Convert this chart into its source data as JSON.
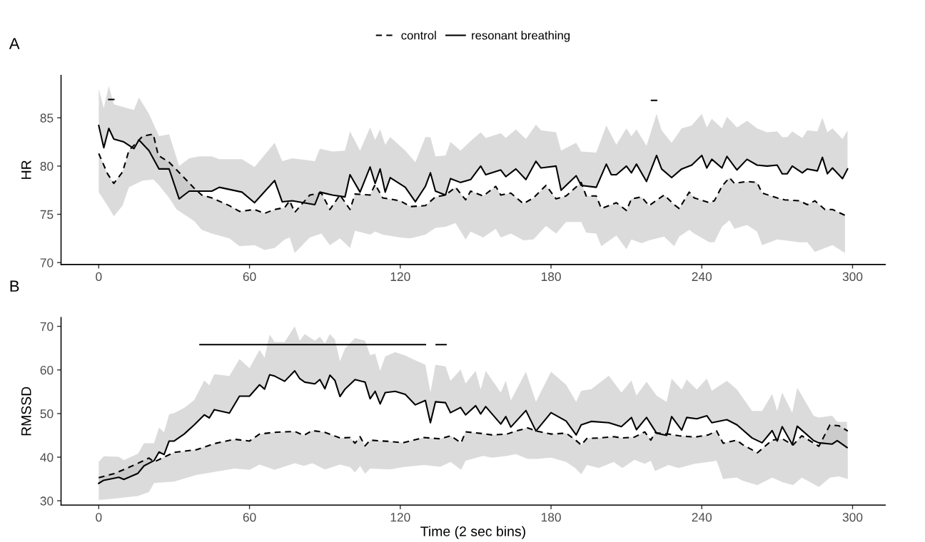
{
  "chart_data": [
    {
      "type": "line",
      "ylabel": "HR",
      "annotations": [
        "A"
      ],
      "legend": "top",
      "grid": false,
      "xlim": [
        -15,
        313
      ],
      "xticks": [
        0,
        60,
        120,
        180,
        240,
        300
      ],
      "ylim": [
        69.8,
        89.4
      ],
      "yticks": [
        70,
        75,
        80,
        85
      ],
      "series": [
        {
          "name": "control",
          "color": "#000000",
          "line_style": "dashed",
          "x": [
            0,
            3.5,
            6,
            9.5,
            12,
            17.5,
            21.7,
            23.7,
            28,
            31,
            38,
            41,
            45,
            52,
            56,
            62,
            66,
            70,
            74,
            76,
            78,
            84,
            88.6,
            92,
            96,
            100,
            102,
            108,
            110,
            113,
            120,
            124,
            130,
            134,
            138,
            142,
            146,
            148,
            153,
            158,
            160,
            164,
            169,
            173,
            178,
            182,
            186,
            192,
            194,
            198,
            200,
            206,
            210,
            212,
            216,
            219,
            225,
            229,
            231,
            235,
            237,
            243,
            245,
            248,
            251,
            253,
            258,
            262,
            264,
            270,
            273,
            279,
            282,
            285,
            289,
            292,
            297
          ],
          "values": [
            81.3,
            79.2,
            78.2,
            79.4,
            81.6,
            83.1,
            83.3,
            81.1,
            80.4,
            79.6,
            77.7,
            77,
            76.7,
            75.9,
            75.3,
            75.5,
            75.1,
            75.5,
            75.7,
            76.4,
            75.2,
            77,
            77.2,
            75.5,
            77,
            75.5,
            77.1,
            77,
            78.1,
            76.7,
            76.4,
            75.8,
            75.9,
            76.8,
            77,
            77.8,
            76.5,
            77.4,
            76.9,
            77.9,
            77,
            77.2,
            76.1,
            76.7,
            78,
            76.6,
            76.9,
            78.3,
            76.9,
            76.9,
            75.6,
            76.2,
            75.4,
            76.6,
            76.8,
            75.9,
            77,
            76,
            75.6,
            77.3,
            76.7,
            76.2,
            76.4,
            77.9,
            78.8,
            78.2,
            78.4,
            78.3,
            77.2,
            76.7,
            76.5,
            76.4,
            76,
            76.4,
            75.5,
            75.5,
            74.9
          ],
          "lower": [
            77.3,
            75.9,
            74.8,
            75.9,
            77.8,
            78.5,
            78.6,
            78.1,
            76.7,
            75.5,
            74.3,
            73.4,
            73,
            72.5,
            71.7,
            71.8,
            71.3,
            71.5,
            72.4,
            72.6,
            71,
            72.6,
            73,
            71.8,
            72.5,
            71.5,
            73.3,
            72.9,
            73.2,
            72.9,
            72.6,
            72.5,
            72.9,
            73.6,
            73.7,
            74.1,
            72.4,
            73.2,
            72.6,
            73.5,
            72.6,
            73,
            72.3,
            72.4,
            73.8,
            73,
            74.2,
            74.2,
            73.1,
            73,
            71.7,
            72.8,
            71.4,
            72.4,
            72,
            72.3,
            72.7,
            71.7,
            72.7,
            73.4,
            73,
            72.1,
            72.1,
            73.7,
            74.4,
            73.5,
            73.9,
            73.2,
            71.8,
            72.4,
            72.3,
            72.1,
            72.1,
            71.1,
            71.5,
            71.8,
            71
          ],
          "upper": [
            81.3,
            79.2,
            78.2,
            79.4,
            81.6,
            83.1,
            83.3,
            81.1,
            80.4,
            79.6,
            77.7,
            77,
            76.7,
            75.9,
            75.3,
            75.5,
            75.1,
            75.5,
            75.7,
            76.4,
            75.2,
            77,
            77.2,
            75.5,
            77,
            75.5,
            77.1,
            77,
            78.1,
            76.7,
            76.4,
            75.8,
            75.9,
            76.8,
            77,
            77.8,
            76.5,
            77.4,
            76.9,
            77.9,
            77,
            77.2,
            76.1,
            76.7,
            78,
            76.6,
            76.9,
            78.3,
            76.9,
            76.9,
            75.6,
            76.2,
            75.4,
            76.6,
            76.8,
            75.9,
            77,
            76,
            75.6,
            77.3,
            76.7,
            76.2,
            76.4,
            77.9,
            78.8,
            78.2,
            78.4,
            78.3,
            77.2,
            76.7,
            76.5,
            76.4,
            76,
            76.4,
            75.5,
            75.5,
            74.9
          ]
        },
        {
          "name": "resonant breathing",
          "color": "#000000",
          "line_style": "solid",
          "x": [
            0,
            2,
            4,
            6,
            10,
            14,
            16,
            20,
            24,
            28,
            32,
            36,
            40,
            45,
            48,
            57,
            62,
            70,
            73,
            77,
            86,
            88,
            93,
            98,
            100,
            104,
            108,
            110,
            112,
            114,
            116,
            122,
            126,
            130,
            132,
            134,
            138,
            140,
            144,
            148,
            152,
            154,
            160,
            162,
            166,
            170,
            174,
            176,
            182,
            184,
            190,
            192,
            198,
            202,
            204,
            206,
            210,
            212,
            214,
            218,
            222,
            224,
            228,
            232,
            236,
            240,
            242,
            244,
            248,
            250,
            254,
            258,
            262,
            266,
            270,
            272,
            274,
            276,
            280,
            282,
            286,
            288,
            290,
            292,
            296,
            298
          ],
          "values": [
            84.2,
            81.9,
            83.9,
            82.8,
            82.5,
            81.8,
            82.7,
            81.6,
            79.7,
            79.7,
            76.6,
            77.4,
            77.4,
            77.4,
            77.8,
            77.3,
            76.2,
            78.5,
            76.3,
            76.4,
            76,
            77.3,
            77,
            76.8,
            79.1,
            77.3,
            79.9,
            78.2,
            79.7,
            77.3,
            78.8,
            77.8,
            76.3,
            77.9,
            79.3,
            77.4,
            77,
            78.7,
            78.3,
            78.6,
            80,
            79.1,
            79.6,
            78.9,
            79.7,
            78.6,
            80.5,
            79.8,
            80,
            77.5,
            79,
            78,
            77.8,
            80.2,
            79.1,
            79.1,
            80,
            79.3,
            80.2,
            78.4,
            81.1,
            79.7,
            78.8,
            79.7,
            80.1,
            81.1,
            79.8,
            80.7,
            79.8,
            81,
            79.6,
            80.7,
            80.1,
            80,
            80.1,
            79.2,
            79.2,
            80,
            79.3,
            79.7,
            79.5,
            80.9,
            79.2,
            79.8,
            78.7,
            79.7
          ],
          "lower": [
            84.2,
            81.9,
            83.9,
            82.8,
            82.5,
            81.8,
            82.7,
            81.6,
            79.7,
            79.7,
            76.6,
            77.4,
            77.4,
            77.4,
            77.8,
            77.3,
            76.2,
            78.5,
            76.3,
            76.4,
            76,
            77.3,
            77,
            76.8,
            79.1,
            77.3,
            79.9,
            78.2,
            79.7,
            77.3,
            78.8,
            77.8,
            76.3,
            77.9,
            79.3,
            77.4,
            77,
            78.7,
            78.3,
            78.6,
            80,
            79.1,
            79.6,
            78.9,
            79.7,
            78.6,
            80.5,
            79.8,
            80,
            77.5,
            79,
            78,
            77.8,
            80.2,
            79.1,
            79.1,
            80,
            79.3,
            80.2,
            78.4,
            81.1,
            79.7,
            78.8,
            79.7,
            80.1,
            81.1,
            79.8,
            80.7,
            79.8,
            81,
            79.6,
            80.7,
            80.1,
            80,
            80.1,
            79.2,
            79.2,
            80,
            79.3,
            79.7,
            79.5,
            80.9,
            79.2,
            79.8,
            78.7,
            79.7
          ],
          "upper": [
            88,
            86,
            88.3,
            86.4,
            86.1,
            85.8,
            87.1,
            85.4,
            83.1,
            83.3,
            80,
            80.8,
            81,
            81,
            80.7,
            80.7,
            79.9,
            82.4,
            80.5,
            80.8,
            80.5,
            81.8,
            81.5,
            81.6,
            83.6,
            81.6,
            84,
            82.7,
            83.8,
            82.2,
            83,
            81.6,
            80.4,
            83,
            83,
            81,
            81.1,
            82.5,
            81.6,
            82.6,
            83.5,
            82.9,
            83.4,
            82.9,
            83.8,
            82.8,
            84.3,
            83.7,
            83.5,
            81.6,
            82.4,
            81.5,
            81.4,
            84.2,
            83.2,
            82.2,
            83.9,
            83.1,
            83.8,
            82.1,
            85.4,
            83.7,
            82.4,
            83.9,
            84.2,
            85.4,
            84,
            84.9,
            83.9,
            85.1,
            84,
            84.7,
            83.9,
            83.5,
            83.6,
            83,
            83,
            83.6,
            82.9,
            83.7,
            83.6,
            85,
            83.5,
            83.9,
            82.8,
            83.7
          ]
        },
        {
          "color": "#000000",
          "line_style": "solid",
          "x": [
            4,
            6
          ],
          "values": [
            86.9,
            86.9
          ]
        },
        {
          "color": "#000000",
          "line_style": "solid",
          "x": [
            220,
            222
          ],
          "values": [
            86.8,
            86.8
          ]
        }
      ]
    },
    {
      "type": "line",
      "xlabel": "Time (2 sec bins)",
      "ylabel": "RMSSD",
      "annotations": [
        "B"
      ],
      "grid": false,
      "xlim": [
        -15,
        313
      ],
      "xticks": [
        0,
        60,
        120,
        180,
        240,
        300
      ],
      "ylim": [
        29,
        72
      ],
      "yticks": [
        30,
        40,
        50,
        60,
        70
      ],
      "series": [
        {
          "color": "#000000",
          "line_style": "dashed",
          "x": [
            0,
            6,
            11,
            15.6,
            20,
            22,
            30,
            38.8,
            46,
            54,
            60,
            64,
            70,
            78,
            81.6,
            85,
            90,
            96,
            100,
            102,
            104,
            106,
            108,
            116,
            121,
            129.4,
            135.9,
            140,
            144.2,
            146,
            153,
            156.6,
            162.5,
            166,
            170.7,
            174.2,
            180.1,
            186,
            189.6,
            192,
            194.3,
            199,
            204.9,
            208.4,
            213.2,
            217.3,
            219.7,
            221.4,
            226.7,
            230.8,
            237.3,
            242.6,
            245.9,
            248.5,
            253.9,
            256.2,
            262.1,
            268,
            272.1,
            276.3,
            279.8,
            286.6,
            291,
            294.6,
            298.1
          ],
          "values": [
            35.3,
            36.2,
            37.4,
            38.6,
            39.8,
            38.9,
            41.1,
            41.7,
            43.1,
            44.1,
            43.7,
            45.3,
            45.7,
            45.9,
            45,
            46.1,
            45.7,
            44.4,
            44.5,
            43.2,
            44.7,
            42.6,
            43.9,
            43.6,
            43.3,
            44.5,
            44.2,
            44.9,
            43.3,
            45.8,
            45.4,
            45.1,
            45.3,
            46,
            46.7,
            46,
            45.3,
            45.5,
            44,
            42.8,
            44.3,
            44.4,
            44.7,
            44.4,
            44.6,
            45.8,
            43.9,
            45.6,
            45.3,
            44.9,
            44.6,
            45.1,
            46,
            43.2,
            43.9,
            42.9,
            41,
            43.9,
            44.2,
            42.8,
            44.9,
            42.5,
            47.4,
            47.2,
            46
          ],
          "lower": [
            30.2,
            30.5,
            30.8,
            31.1,
            32,
            34.1,
            34.4,
            35.9,
            36.6,
            37.4,
            37.1,
            38.3,
            37.1,
            38.6,
            38,
            38.6,
            37.2,
            38.3,
            37.7,
            36.5,
            38,
            36.2,
            37.4,
            37.2,
            37.7,
            38.2,
            37.8,
            38.9,
            37.1,
            39.2,
            40.3,
            39.9,
            40.3,
            40.7,
            39.6,
            39.6,
            39.9,
            38.9,
            37.5,
            36.1,
            38.2,
            37.5,
            38.9,
            37.5,
            39.4,
            38.5,
            39.2,
            36.8,
            38.2,
            37.5,
            38.5,
            38.9,
            39.2,
            35,
            35.3,
            34.6,
            33.6,
            35.3,
            34.3,
            33.6,
            35.3,
            33.2,
            35.3,
            35.6,
            35
          ],
          "upper": [
            35.3,
            36.2,
            37.4,
            38.6,
            39.8,
            38.9,
            41.1,
            41.7,
            43.1,
            44.1,
            43.7,
            45.3,
            45.7,
            45.9,
            45,
            46.1,
            45.7,
            44.4,
            44.5,
            43.2,
            44.7,
            42.6,
            43.9,
            43.6,
            43.3,
            44.5,
            44.2,
            44.9,
            43.3,
            45.8,
            45.4,
            45.1,
            45.3,
            46,
            46.7,
            46,
            45.3,
            45.5,
            44,
            42.8,
            44.3,
            44.4,
            44.7,
            44.4,
            44.6,
            45.8,
            43.9,
            45.6,
            45.3,
            44.9,
            44.6,
            45.1,
            46,
            43.2,
            43.9,
            42.9,
            41,
            43.9,
            44.2,
            42.8,
            44.9,
            42.5,
            47.4,
            47.2,
            46
          ]
        },
        {
          "color": "#000000",
          "line_style": "solid",
          "x": [
            0,
            2,
            8,
            10,
            15.6,
            18,
            22,
            24,
            26,
            28,
            30,
            34,
            38,
            42,
            44,
            46,
            52,
            56,
            60,
            64,
            66,
            68,
            70,
            74,
            78,
            80,
            82,
            86,
            88,
            90,
            92,
            94,
            96,
            98,
            102,
            106,
            108,
            110,
            112,
            114,
            118,
            122,
            126,
            130,
            132,
            134,
            138,
            140,
            144,
            146,
            150,
            152,
            154,
            160,
            162,
            164,
            170,
            174,
            180,
            186,
            190,
            192,
            196,
            203,
            208,
            212,
            214,
            218,
            222,
            226,
            228,
            232,
            234,
            238,
            242,
            244,
            250,
            254,
            260,
            264,
            268,
            270,
            272,
            276,
            278,
            284.5,
            286.5,
            291.9,
            293.9,
            297.8
          ],
          "values": [
            34,
            34.7,
            35.4,
            34.9,
            36.3,
            38,
            39.2,
            41.2,
            40.6,
            43.7,
            43.7,
            45.3,
            47.4,
            49.7,
            49,
            50.9,
            50.1,
            54,
            54,
            56.6,
            55.6,
            58.9,
            58.6,
            57.4,
            59.8,
            58,
            57.2,
            56.8,
            57.8,
            55.7,
            58.8,
            57.6,
            53.9,
            55.6,
            57.8,
            57.2,
            53.4,
            55.1,
            52.2,
            54.8,
            55.1,
            54.4,
            52,
            53,
            47.9,
            52.7,
            52.5,
            50.2,
            51.4,
            49.7,
            51.8,
            49.9,
            51.6,
            47.6,
            49.3,
            46.9,
            50.7,
            46,
            50.2,
            48.3,
            45.1,
            47.4,
            48.2,
            47.9,
            47,
            49.1,
            46.3,
            49.1,
            45.5,
            45,
            49.3,
            46.2,
            49.1,
            48.8,
            49.5,
            47.9,
            48.6,
            47.4,
            44.4,
            43.3,
            46.1,
            43.7,
            47,
            42.9,
            47.1,
            43.8,
            43.3,
            43,
            43.8,
            42.2
          ],
          "lower": [
            34,
            34.7,
            35.4,
            34.9,
            36.3,
            38,
            39.2,
            41.2,
            40.6,
            43.7,
            43.7,
            45.3,
            47.4,
            49.7,
            49,
            50.9,
            50.1,
            54,
            54,
            56.6,
            55.6,
            58.9,
            58.6,
            57.4,
            59.8,
            58,
            57.2,
            56.8,
            57.8,
            55.7,
            58.8,
            57.6,
            53.9,
            55.6,
            57.8,
            57.2,
            53.4,
            55.1,
            52.2,
            54.8,
            55.1,
            54.4,
            52,
            53,
            47.9,
            52.7,
            52.5,
            50.2,
            51.4,
            49.7,
            51.8,
            49.9,
            51.6,
            47.6,
            49.3,
            46.9,
            50.7,
            46,
            50.2,
            48.3,
            45.1,
            47.4,
            48.2,
            47.9,
            47,
            49.1,
            46.3,
            49.1,
            45.5,
            45,
            49.3,
            46.2,
            49.1,
            48.8,
            49.5,
            47.9,
            48.6,
            47.4,
            44.4,
            43.3,
            46.1,
            43.7,
            47,
            42.9,
            47.1,
            43.8,
            43.3,
            43,
            43.8,
            42.2
          ],
          "upper": [
            38.9,
            40.2,
            40.1,
            39.3,
            40.8,
            43.2,
            43.2,
            46.8,
            45.7,
            49.8,
            50.1,
            51.3,
            53.1,
            57.6,
            56.5,
            59,
            58.6,
            62.5,
            60.4,
            64.6,
            62.8,
            68.1,
            66.4,
            66.4,
            70,
            66.7,
            68.2,
            66.7,
            67.6,
            66.1,
            68.2,
            67,
            62,
            64.9,
            67.3,
            66.7,
            63.4,
            63.7,
            59.8,
            63.1,
            64.1,
            63.3,
            62.2,
            61.2,
            54.8,
            61.2,
            60.8,
            57.5,
            60.1,
            56.9,
            59.8,
            55.5,
            59.8,
            54.8,
            57.5,
            53,
            59.6,
            52.7,
            59.6,
            56.6,
            52.7,
            55.2,
            55.6,
            58.7,
            54.8,
            57.6,
            54.1,
            57.3,
            54.1,
            52.7,
            58,
            55.5,
            57.8,
            55.5,
            58,
            55.2,
            57.5,
            55.5,
            50.6,
            50.6,
            54.5,
            50.6,
            54.8,
            50.2,
            55.9,
            49.5,
            49.1,
            49.5,
            48.1,
            48.1
          ]
        },
        {
          "color": "#000000",
          "line_style": "solid",
          "x": [
            40.3,
            130
          ],
          "values": [
            65.8,
            65.8
          ]
        },
        {
          "color": "#000000",
          "line_style": "solid",
          "x": [
            134.3,
            138.2
          ],
          "values": [
            65.8,
            65.8
          ]
        }
      ]
    }
  ]
}
